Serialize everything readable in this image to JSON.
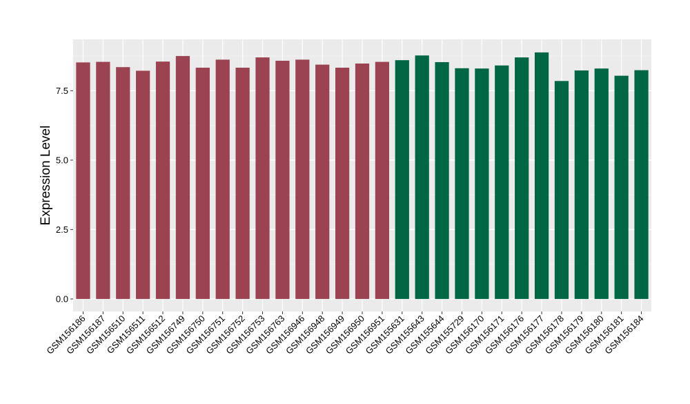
{
  "chart_data": {
    "type": "bar",
    "ylabel": "Expression Level",
    "xlabel": "",
    "ylim": [
      -0.45,
      9.35
    ],
    "yticks": [
      0.0,
      2.5,
      5.0,
      7.5
    ],
    "ytick_labels": [
      "0.0",
      "2.5",
      "5.0",
      "7.5"
    ],
    "grid": true,
    "legend": "none",
    "categories": [
      "GSM156186",
      "GSM156187",
      "GSM156510",
      "GSM156511",
      "GSM156512",
      "GSM156749",
      "GSM156750",
      "GSM156751",
      "GSM156752",
      "GSM156753",
      "GSM156763",
      "GSM156946",
      "GSM156948",
      "GSM156949",
      "GSM156950",
      "GSM156951",
      "GSM155631",
      "GSM155643",
      "GSM155644",
      "GSM155729",
      "GSM156170",
      "GSM156171",
      "GSM156176",
      "GSM156177",
      "GSM156178",
      "GSM156179",
      "GSM156180",
      "GSM156181",
      "GSM156184"
    ],
    "values": [
      8.52,
      8.54,
      8.35,
      8.22,
      8.55,
      8.75,
      8.33,
      8.62,
      8.33,
      8.7,
      8.58,
      8.62,
      8.44,
      8.33,
      8.48,
      8.54,
      8.6,
      8.77,
      8.53,
      8.31,
      8.3,
      8.41,
      8.7,
      8.88,
      7.85,
      8.23,
      8.3,
      8.04,
      8.24
    ],
    "group_index": [
      0,
      0,
      0,
      0,
      0,
      0,
      0,
      0,
      0,
      0,
      0,
      0,
      0,
      0,
      0,
      0,
      1,
      1,
      1,
      1,
      1,
      1,
      1,
      1,
      1,
      1,
      1,
      1,
      1
    ],
    "colors": {
      "group_colors": [
        "#9b4350",
        "#006644"
      ],
      "panel_background": "#ebebeb",
      "grid_major": "#ffffff",
      "grid_minor": "#f5f5f5",
      "axis_text": "#000000",
      "tick_color": "#333333"
    }
  }
}
